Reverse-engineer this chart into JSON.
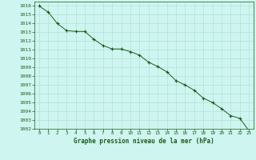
{
  "x": [
    0,
    1,
    2,
    3,
    4,
    5,
    6,
    7,
    8,
    9,
    10,
    11,
    12,
    13,
    14,
    15,
    16,
    17,
    18,
    19,
    20,
    21,
    22,
    23
  ],
  "y": [
    1016.0,
    1015.3,
    1014.0,
    1013.2,
    1013.1,
    1013.1,
    1012.2,
    1011.5,
    1011.1,
    1011.1,
    1010.8,
    1010.4,
    1009.6,
    1009.1,
    1008.5,
    1007.5,
    1007.0,
    1006.4,
    1005.5,
    1005.0,
    1004.3,
    1003.5,
    1003.2,
    1001.8
  ],
  "ylim": [
    1002,
    1016.5
  ],
  "xlim": [
    -0.5,
    23.5
  ],
  "yticks": [
    1002,
    1003,
    1004,
    1005,
    1006,
    1007,
    1008,
    1009,
    1010,
    1011,
    1012,
    1013,
    1014,
    1015,
    1016
  ],
  "xticks": [
    0,
    1,
    2,
    3,
    4,
    5,
    6,
    7,
    8,
    9,
    10,
    11,
    12,
    13,
    14,
    15,
    16,
    17,
    18,
    19,
    20,
    21,
    22,
    23
  ],
  "line_color": "#1a5c1a",
  "marker_color": "#1a5c1a",
  "bg_color": "#cff5f0",
  "grid_color": "#a8ddd6",
  "xlabel": "Graphe pression niveau de la mer (hPa)",
  "xlabel_color": "#1a5c1a",
  "tick_color": "#1a5c1a"
}
